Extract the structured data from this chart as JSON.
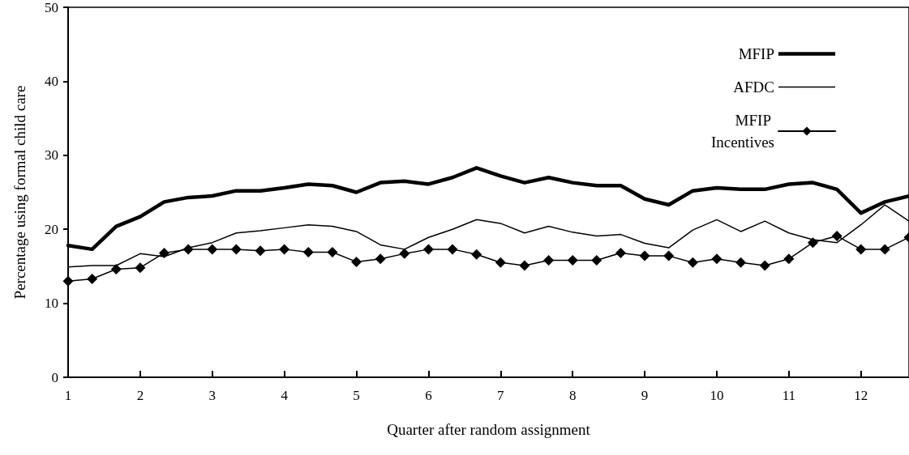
{
  "chart_data": {
    "type": "line",
    "xlabel": "Quarter after random assignment",
    "ylabel": "Percentage using formal child care",
    "x": [
      1,
      1.333,
      1.667,
      2,
      2.333,
      2.667,
      3,
      3.333,
      3.667,
      4,
      4.333,
      4.667,
      5,
      5.333,
      5.667,
      6,
      6.333,
      6.667,
      7,
      7.333,
      7.667,
      8,
      8.333,
      8.667,
      9,
      9.333,
      9.667,
      10,
      10.333,
      10.667,
      11,
      11.333,
      11.667,
      12,
      12.333,
      12.667
    ],
    "series": [
      {
        "name": "MFIP",
        "color": "#000000",
        "marker": "none",
        "values": [
          17.8,
          17.3,
          20.4,
          21.7,
          23.7,
          24.3,
          24.5,
          25.2,
          25.2,
          25.6,
          26.1,
          25.9,
          25.0,
          26.3,
          26.5,
          26.1,
          27.0,
          28.3,
          27.2,
          26.3,
          27.0,
          26.3,
          25.9,
          25.9,
          24.1,
          23.3,
          25.2,
          25.6,
          25.4,
          25.4,
          26.1,
          26.3,
          25.4,
          22.2,
          23.7,
          24.5
        ]
      },
      {
        "name": "AFDC",
        "color": "#000000",
        "marker": "none",
        "values": [
          14.9,
          15.1,
          15.1,
          16.7,
          16.3,
          17.5,
          18.2,
          19.5,
          19.8,
          20.2,
          20.6,
          20.4,
          19.7,
          17.9,
          17.3,
          18.9,
          20.0,
          21.3,
          20.8,
          19.5,
          20.4,
          19.6,
          19.1,
          19.3,
          18.1,
          17.5,
          19.9,
          21.3,
          19.7,
          21.1,
          19.5,
          18.6,
          18.2,
          20.6,
          23.3,
          21.1
        ]
      },
      {
        "name": "MFIP Incentives",
        "color": "#000000",
        "marker": "diamond",
        "values": [
          13.0,
          13.3,
          14.6,
          14.8,
          16.8,
          17.3,
          17.3,
          17.3,
          17.1,
          17.3,
          16.9,
          16.9,
          15.6,
          16.0,
          16.7,
          17.3,
          17.3,
          16.6,
          15.5,
          15.1,
          15.8,
          15.8,
          15.8,
          16.8,
          16.4,
          16.4,
          15.5,
          16.0,
          15.5,
          15.1,
          16.0,
          18.2,
          19.1,
          17.3,
          17.3,
          18.9
        ]
      }
    ],
    "xlim": [
      1,
      12.667
    ],
    "xticks": [
      1,
      2,
      3,
      4,
      5,
      6,
      7,
      8,
      9,
      10,
      11,
      12
    ],
    "ylim": [
      0,
      50
    ],
    "yticks": [
      0,
      10,
      20,
      30,
      40,
      50
    ],
    "grid": false,
    "legend": "top right",
    "line_style": "solid"
  }
}
